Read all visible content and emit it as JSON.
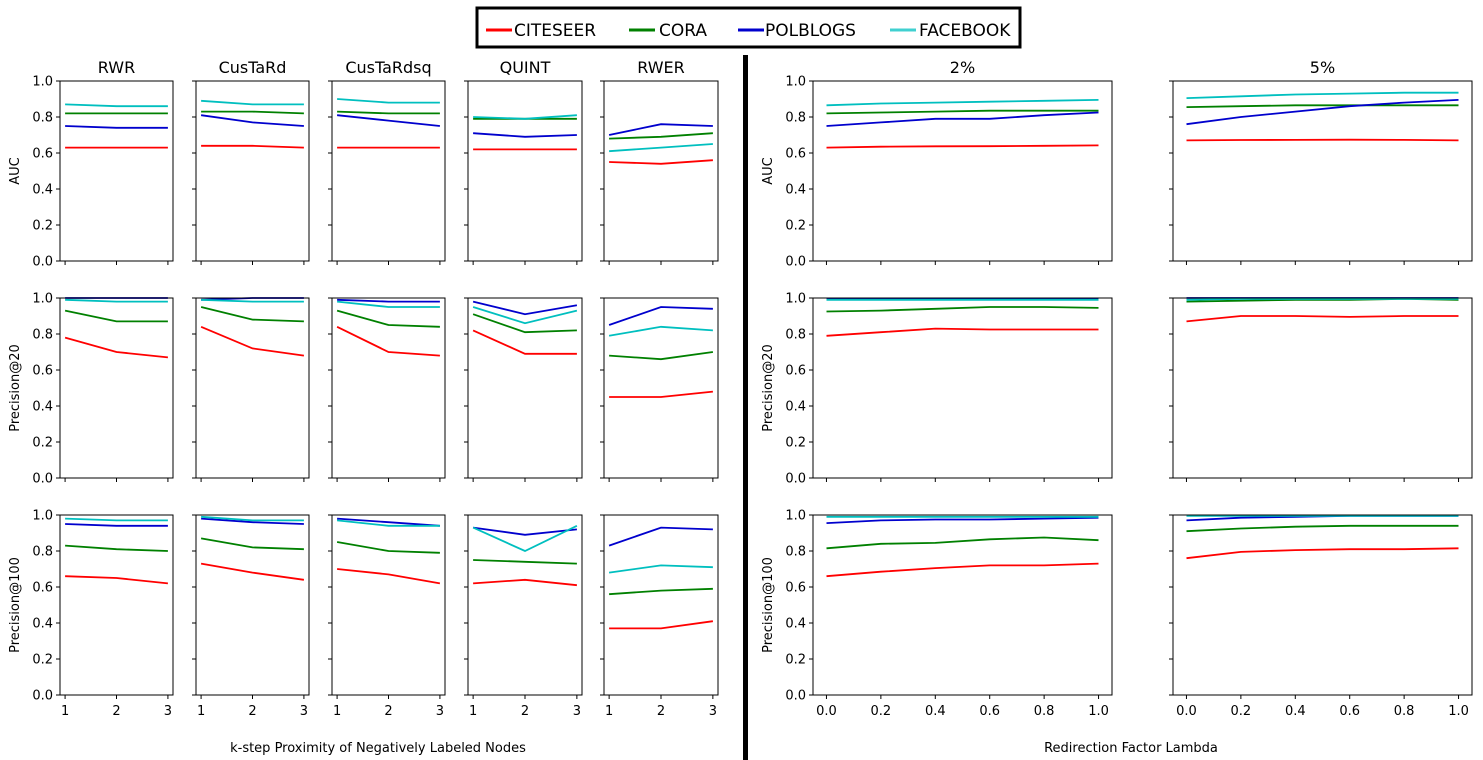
{
  "chart_data": {
    "type": "line",
    "legend": {
      "position": "top-center",
      "entries": [
        {
          "name": "CITESEER",
          "color": "#ff0000"
        },
        {
          "name": "CORA",
          "color": "#008000"
        },
        {
          "name": "POLBLOGS",
          "color": "#0000cd"
        },
        {
          "name": "FACEBOOK",
          "color": "#40d0d0"
        }
      ]
    },
    "left_xlabel": "k-step Proximity of Negatively Labeled Nodes",
    "right_xlabel": "Redirection Factor Lambda",
    "row_labels": [
      "AUC",
      "Precision@20",
      "Precision@100"
    ],
    "ylim": [
      0,
      1
    ],
    "yticks": [
      "0.0",
      "0.2",
      "0.4",
      "0.6",
      "0.8",
      "1.0"
    ],
    "left_x": [
      1,
      2,
      3
    ],
    "left_xticks": [
      "1",
      "2",
      "3"
    ],
    "right_x": [
      0,
      0.2,
      0.4,
      0.6,
      0.8,
      1.0
    ],
    "right_xticks": [
      "0.0",
      "0.2",
      "0.4",
      "0.6",
      "0.8",
      "1.0"
    ],
    "left_methods": [
      "RWR",
      "CusTaRd",
      "CusTaRdsq",
      "QUINT",
      "RWER"
    ],
    "right_panels": [
      "2%",
      "5%"
    ],
    "series_colors": {
      "CITESEER": "#ff0000",
      "CORA": "#008000",
      "POLBLOGS": "#0000cd",
      "FACEBOOK": "#00bfbf"
    },
    "left_data": {
      "AUC": {
        "RWR": {
          "CITESEER": [
            0.63,
            0.63,
            0.63
          ],
          "CORA": [
            0.82,
            0.82,
            0.82
          ],
          "POLBLOGS": [
            0.75,
            0.74,
            0.74
          ],
          "FACEBOOK": [
            0.87,
            0.86,
            0.86
          ]
        },
        "CusTaRd": {
          "CITESEER": [
            0.64,
            0.64,
            0.63
          ],
          "CORA": [
            0.83,
            0.83,
            0.82
          ],
          "POLBLOGS": [
            0.81,
            0.77,
            0.75
          ],
          "FACEBOOK": [
            0.89,
            0.87,
            0.87
          ]
        },
        "CusTaRdsq": {
          "CITESEER": [
            0.63,
            0.63,
            0.63
          ],
          "CORA": [
            0.83,
            0.82,
            0.82
          ],
          "POLBLOGS": [
            0.81,
            0.78,
            0.75
          ],
          "FACEBOOK": [
            0.9,
            0.88,
            0.88
          ]
        },
        "QUINT": {
          "CITESEER": [
            0.62,
            0.62,
            0.62
          ],
          "CORA": [
            0.79,
            0.79,
            0.79
          ],
          "POLBLOGS": [
            0.71,
            0.69,
            0.7
          ],
          "FACEBOOK": [
            0.8,
            0.79,
            0.81
          ]
        },
        "RWER": {
          "CITESEER": [
            0.55,
            0.54,
            0.56
          ],
          "CORA": [
            0.68,
            0.69,
            0.71
          ],
          "POLBLOGS": [
            0.7,
            0.76,
            0.75
          ],
          "FACEBOOK": [
            0.61,
            0.63,
            0.65
          ]
        }
      },
      "Precision@20": {
        "RWR": {
          "CITESEER": [
            0.78,
            0.7,
            0.67
          ],
          "CORA": [
            0.93,
            0.87,
            0.87
          ],
          "POLBLOGS": [
            1.0,
            1.0,
            1.0
          ],
          "FACEBOOK": [
            0.99,
            0.98,
            0.98
          ]
        },
        "CusTaRd": {
          "CITESEER": [
            0.84,
            0.72,
            0.68
          ],
          "CORA": [
            0.95,
            0.88,
            0.87
          ],
          "POLBLOGS": [
            0.99,
            1.0,
            1.0
          ],
          "FACEBOOK": [
            0.99,
            0.98,
            0.98
          ]
        },
        "CusTaRdsq": {
          "CITESEER": [
            0.84,
            0.7,
            0.68
          ],
          "CORA": [
            0.93,
            0.85,
            0.84
          ],
          "POLBLOGS": [
            0.99,
            0.98,
            0.98
          ],
          "FACEBOOK": [
            0.98,
            0.95,
            0.95
          ]
        },
        "QUINT": {
          "CITESEER": [
            0.82,
            0.69,
            0.69
          ],
          "CORA": [
            0.91,
            0.81,
            0.82
          ],
          "POLBLOGS": [
            0.98,
            0.91,
            0.96
          ],
          "FACEBOOK": [
            0.95,
            0.86,
            0.93
          ]
        },
        "RWER": {
          "CITESEER": [
            0.45,
            0.45,
            0.48
          ],
          "CORA": [
            0.68,
            0.66,
            0.7
          ],
          "POLBLOGS": [
            0.85,
            0.95,
            0.94
          ],
          "FACEBOOK": [
            0.79,
            0.84,
            0.82
          ]
        }
      },
      "Precision@100": {
        "RWR": {
          "CITESEER": [
            0.66,
            0.65,
            0.62
          ],
          "CORA": [
            0.83,
            0.81,
            0.8
          ],
          "POLBLOGS": [
            0.95,
            0.94,
            0.94
          ],
          "FACEBOOK": [
            0.98,
            0.97,
            0.97
          ]
        },
        "CusTaRd": {
          "CITESEER": [
            0.73,
            0.68,
            0.64
          ],
          "CORA": [
            0.87,
            0.82,
            0.81
          ],
          "POLBLOGS": [
            0.98,
            0.96,
            0.95
          ],
          "FACEBOOK": [
            0.99,
            0.97,
            0.97
          ]
        },
        "CusTaRdsq": {
          "CITESEER": [
            0.7,
            0.67,
            0.62
          ],
          "CORA": [
            0.85,
            0.8,
            0.79
          ],
          "POLBLOGS": [
            0.98,
            0.96,
            0.94
          ],
          "FACEBOOK": [
            0.97,
            0.94,
            0.94
          ]
        },
        "QUINT": {
          "CITESEER": [
            0.62,
            0.64,
            0.61
          ],
          "CORA": [
            0.75,
            0.74,
            0.73
          ],
          "POLBLOGS": [
            0.93,
            0.89,
            0.92
          ],
          "FACEBOOK": [
            0.93,
            0.8,
            0.94
          ]
        },
        "RWER": {
          "CITESEER": [
            0.37,
            0.37,
            0.41
          ],
          "CORA": [
            0.56,
            0.58,
            0.59
          ],
          "POLBLOGS": [
            0.83,
            0.93,
            0.92
          ],
          "FACEBOOK": [
            0.68,
            0.72,
            0.71
          ]
        }
      }
    },
    "right_data": {
      "AUC": {
        "2%": {
          "CITESEER": [
            0.63,
            0.635,
            0.637,
            0.638,
            0.64,
            0.642
          ],
          "CORA": [
            0.82,
            0.825,
            0.83,
            0.835,
            0.835,
            0.835
          ],
          "POLBLOGS": [
            0.75,
            0.77,
            0.79,
            0.79,
            0.81,
            0.825
          ],
          "FACEBOOK": [
            0.865,
            0.875,
            0.88,
            0.885,
            0.89,
            0.895
          ]
        },
        "5%": {
          "CITESEER": [
            0.67,
            0.672,
            0.673,
            0.674,
            0.673,
            0.67
          ],
          "CORA": [
            0.855,
            0.86,
            0.865,
            0.865,
            0.865,
            0.865
          ],
          "POLBLOGS": [
            0.76,
            0.8,
            0.83,
            0.86,
            0.88,
            0.895
          ],
          "FACEBOOK": [
            0.905,
            0.915,
            0.925,
            0.93,
            0.935,
            0.935
          ]
        }
      },
      "Precision@20": {
        "2%": {
          "CITESEER": [
            0.79,
            0.81,
            0.83,
            0.825,
            0.825,
            0.825
          ],
          "CORA": [
            0.925,
            0.93,
            0.94,
            0.95,
            0.95,
            0.945
          ],
          "POLBLOGS": [
            0.995,
            0.995,
            0.995,
            0.995,
            0.995,
            0.995
          ],
          "FACEBOOK": [
            0.99,
            0.99,
            0.99,
            0.99,
            0.99,
            0.99
          ]
        },
        "5%": {
          "CITESEER": [
            0.87,
            0.9,
            0.9,
            0.895,
            0.9,
            0.9
          ],
          "CORA": [
            0.98,
            0.985,
            0.99,
            0.99,
            0.995,
            0.99
          ],
          "POLBLOGS": [
            1.0,
            1.0,
            1.0,
            1.0,
            1.0,
            1.0
          ],
          "FACEBOOK": [
            0.99,
            0.995,
            0.995,
            0.995,
            0.995,
            0.995
          ]
        }
      },
      "Precision@100": {
        "2%": {
          "CITESEER": [
            0.66,
            0.685,
            0.705,
            0.72,
            0.72,
            0.73
          ],
          "CORA": [
            0.815,
            0.84,
            0.845,
            0.865,
            0.875,
            0.86
          ],
          "POLBLOGS": [
            0.955,
            0.97,
            0.975,
            0.975,
            0.98,
            0.985
          ],
          "FACEBOOK": [
            0.99,
            0.99,
            0.99,
            0.99,
            0.99,
            0.99
          ]
        },
        "5%": {
          "CITESEER": [
            0.76,
            0.795,
            0.805,
            0.81,
            0.81,
            0.815
          ],
          "CORA": [
            0.91,
            0.925,
            0.935,
            0.94,
            0.94,
            0.94
          ],
          "POLBLOGS": [
            0.97,
            0.985,
            0.99,
            0.995,
            0.995,
            0.995
          ],
          "FACEBOOK": [
            0.995,
            0.995,
            0.995,
            0.995,
            0.995,
            0.995
          ]
        }
      }
    }
  }
}
